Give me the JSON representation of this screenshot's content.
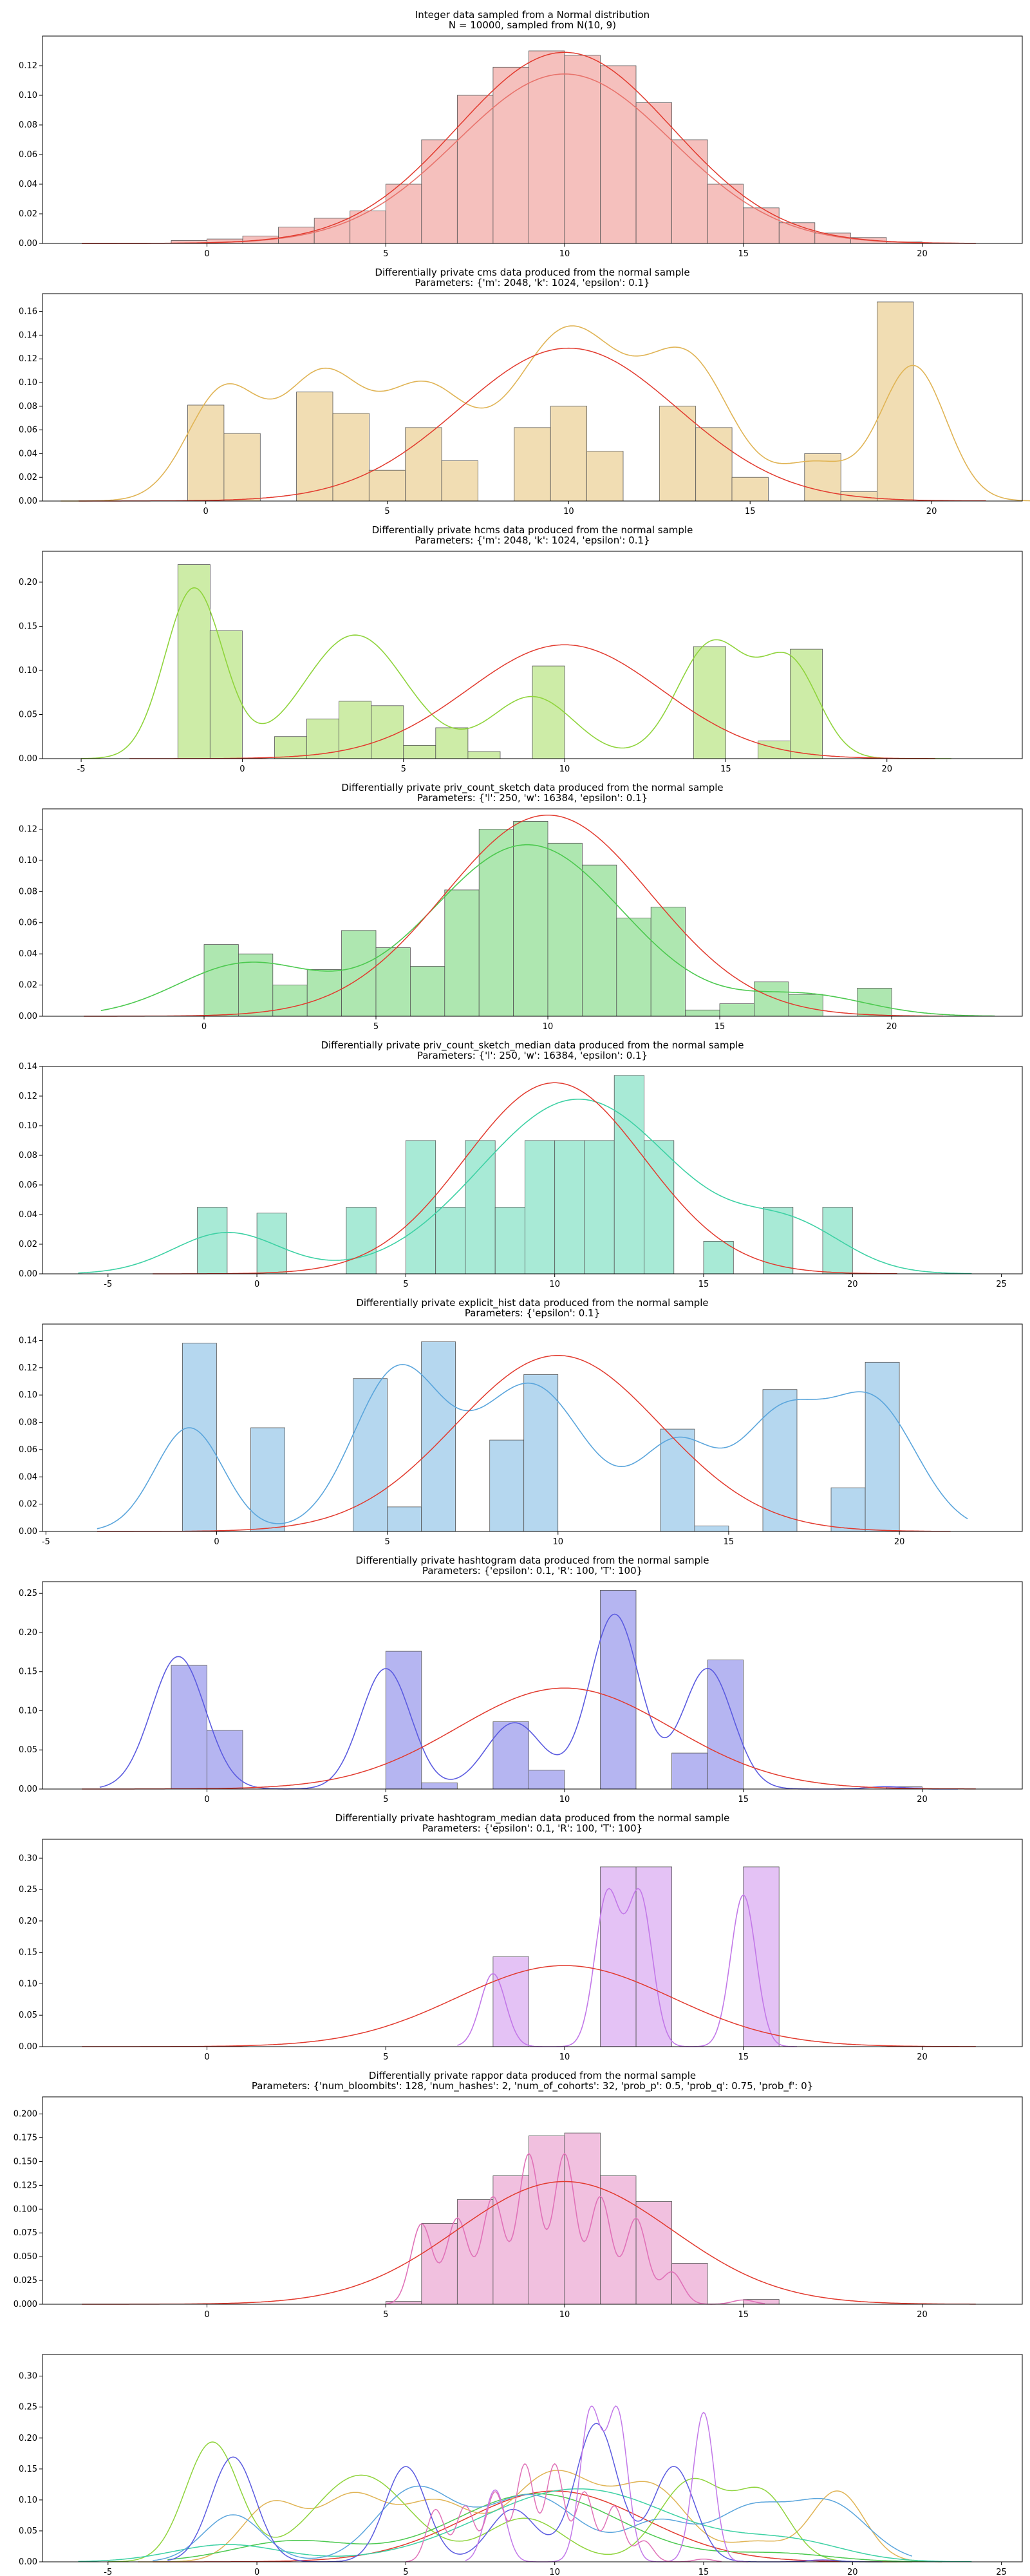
{
  "chart_data": [
    {
      "type": "bar",
      "title": [
        "Integer data sampled from a Normal distribution",
        "N = 10000, sampled from N(10, 9)"
      ],
      "color": "#e8736c",
      "xlim": [
        -4.6,
        22.8
      ],
      "ylim": [
        0,
        0.14
      ],
      "xticks": [
        0,
        5,
        10,
        15,
        20
      ],
      "yticks": [
        0,
        0.02,
        0.04,
        0.06,
        0.08,
        0.1,
        0.12
      ],
      "ytick_labels": [
        "0.00",
        "0.02",
        "0.04",
        "0.06",
        "0.08",
        "0.10",
        "0.12"
      ],
      "bars": [
        [
          -1,
          0.002
        ],
        [
          0,
          0.003
        ],
        [
          1,
          0.005
        ],
        [
          2,
          0.011
        ],
        [
          3,
          0.017
        ],
        [
          4,
          0.022
        ],
        [
          5,
          0.04
        ],
        [
          6,
          0.07
        ],
        [
          7,
          0.1
        ],
        [
          8,
          0.119
        ],
        [
          9,
          0.13
        ],
        [
          10,
          0.127
        ],
        [
          11,
          0.12
        ],
        [
          12,
          0.095
        ],
        [
          13,
          0.07
        ],
        [
          14,
          0.04
        ],
        [
          15,
          0.024
        ],
        [
          16,
          0.014
        ],
        [
          17,
          0.007
        ],
        [
          18,
          0.004
        ],
        [
          19,
          0.001
        ]
      ],
      "kde": {
        "components": [
          [
            1.0,
            10.0,
            3.0
          ]
        ],
        "range": [
          -3.5,
          21.5
        ]
      }
    },
    {
      "type": "bar",
      "title": [
        "Differentially private cms data produced from the normal sample",
        "Parameters: {'m': 2048, 'k': 1024, 'epsilon': 0.1}"
      ],
      "color": "#e0b455",
      "xlim": [
        -4.5,
        22.5
      ],
      "ylim": [
        0,
        0.175
      ],
      "xticks": [
        0,
        5,
        10,
        15,
        20
      ],
      "yticks": [
        0,
        0.02,
        0.04,
        0.06,
        0.08,
        0.1,
        0.12,
        0.14,
        0.16
      ],
      "ytick_labels": [
        "0.00",
        "0.02",
        "0.04",
        "0.06",
        "0.08",
        "0.10",
        "0.12",
        "0.14",
        "0.16"
      ],
      "bars": [
        [
          -0.5,
          0.081
        ],
        [
          0.5,
          0.057
        ],
        [
          2.5,
          0.092
        ],
        [
          3.5,
          0.074
        ],
        [
          4.5,
          0.026
        ],
        [
          5.5,
          0.062
        ],
        [
          6.5,
          0.034
        ],
        [
          8.5,
          0.062
        ],
        [
          9.5,
          0.08
        ],
        [
          10.5,
          0.042
        ],
        [
          12.5,
          0.08
        ],
        [
          13.5,
          0.062
        ],
        [
          14.5,
          0.02
        ],
        [
          16.5,
          0.04
        ],
        [
          17.5,
          0.008
        ],
        [
          18.5,
          0.168
        ]
      ],
      "kde": {
        "components": [
          [
            0.09,
            0.5,
            1.0
          ],
          [
            0.1,
            3.2,
            1.1
          ],
          [
            0.09,
            6.0,
            1.2
          ],
          [
            0.14,
            10.0,
            1.5
          ],
          [
            0.11,
            13.3,
            1.2
          ],
          [
            0.03,
            16.8,
            1.0
          ],
          [
            0.11,
            19.5,
            0.9
          ]
        ],
        "range": [
          -4,
          23
        ]
      }
    },
    {
      "type": "bar",
      "title": [
        "Differentially private hcms data produced from the normal sample",
        "Parameters: {'m': 2048, 'k': 1024, 'epsilon': 0.1}"
      ],
      "color": "#8fd43c",
      "xlim": [
        -6.2,
        24.2
      ],
      "ylim": [
        0,
        0.235
      ],
      "xticks": [
        -5,
        0,
        5,
        10,
        15,
        20
      ],
      "yticks": [
        0,
        0.05,
        0.1,
        0.15,
        0.2
      ],
      "ytick_labels": [
        "0.00",
        "0.05",
        "0.10",
        "0.15",
        "0.20"
      ],
      "bars": [
        [
          -2,
          0.22
        ],
        [
          -1,
          0.145
        ],
        [
          1,
          0.025
        ],
        [
          2,
          0.045
        ],
        [
          3,
          0.065
        ],
        [
          4,
          0.06
        ],
        [
          5,
          0.015
        ],
        [
          6,
          0.035
        ],
        [
          7,
          0.008
        ],
        [
          9,
          0.105
        ],
        [
          14,
          0.127
        ],
        [
          16,
          0.02
        ],
        [
          17,
          0.124
        ]
      ],
      "kde": {
        "components": [
          [
            0.22,
            -1.5,
            0.9
          ],
          [
            0.16,
            3.5,
            1.6
          ],
          [
            0.08,
            9.0,
            1.3
          ],
          [
            0.15,
            14.6,
            1.1
          ],
          [
            0.12,
            17.0,
            0.9
          ]
        ],
        "range": [
          -5,
          22
        ]
      }
    },
    {
      "type": "bar",
      "title": [
        "Differentially private priv_count_sketch data produced from the normal sample",
        "Parameters: {'l': 250, 'w': 16384, 'epsilon': 0.1}"
      ],
      "color": "#4cc94f",
      "xlim": [
        -4.7,
        23.8
      ],
      "ylim": [
        0,
        0.133
      ],
      "xticks": [
        0,
        5,
        10,
        15,
        20
      ],
      "yticks": [
        0,
        0.02,
        0.04,
        0.06,
        0.08,
        0.1,
        0.12
      ],
      "ytick_labels": [
        "0.00",
        "0.02",
        "0.04",
        "0.06",
        "0.08",
        "0.10",
        "0.12"
      ],
      "bars": [
        [
          0,
          0.046
        ],
        [
          1,
          0.04
        ],
        [
          2,
          0.02
        ],
        [
          3,
          0.03
        ],
        [
          4,
          0.055
        ],
        [
          5,
          0.044
        ],
        [
          6,
          0.032
        ],
        [
          7,
          0.081
        ],
        [
          8,
          0.12
        ],
        [
          9,
          0.125
        ],
        [
          10,
          0.111
        ],
        [
          11,
          0.097
        ],
        [
          12,
          0.063
        ],
        [
          13,
          0.07
        ],
        [
          14,
          0.004
        ],
        [
          15,
          0.008
        ],
        [
          16,
          0.022
        ],
        [
          17,
          0.014
        ],
        [
          19,
          0.018
        ]
      ],
      "kde": {
        "components": [
          [
            0.3,
            1.2,
            2.0
          ],
          [
            1.0,
            9.4,
            2.8
          ],
          [
            0.12,
            17.5,
            1.8
          ]
        ],
        "range": [
          -3,
          23
        ]
      }
    },
    {
      "type": "bar",
      "title": [
        "Differentially private priv_count_sketch_median data produced from the normal sample",
        "Parameters: {'l': 250, 'w': 16384, 'epsilon': 0.1}"
      ],
      "color": "#3dd1a4",
      "xlim": [
        -7.2,
        25.7
      ],
      "ylim": [
        0,
        0.14
      ],
      "xticks": [
        -5,
        0,
        5,
        10,
        15,
        20,
        25
      ],
      "yticks": [
        0,
        0.02,
        0.04,
        0.06,
        0.08,
        0.1,
        0.12,
        0.14
      ],
      "ytick_labels": [
        "0.00",
        "0.02",
        "0.04",
        "0.06",
        "0.08",
        "0.10",
        "0.12",
        "0.14"
      ],
      "bars": [
        [
          -2,
          0.045
        ],
        [
          0,
          0.041
        ],
        [
          3,
          0.045
        ],
        [
          5,
          0.09
        ],
        [
          6,
          0.045
        ],
        [
          7,
          0.09
        ],
        [
          8,
          0.045
        ],
        [
          9,
          0.09
        ],
        [
          10,
          0.09
        ],
        [
          11,
          0.09
        ],
        [
          12,
          0.134
        ],
        [
          13,
          0.09
        ],
        [
          15,
          0.022
        ],
        [
          17,
          0.045
        ],
        [
          19,
          0.045
        ]
      ],
      "kde": {
        "components": [
          [
            0.2,
            -1.0,
            1.8
          ],
          [
            0.85,
            10.8,
            3.3
          ],
          [
            0.2,
            18.0,
            1.8
          ]
        ],
        "range": [
          -6,
          24
        ]
      }
    },
    {
      "type": "bar",
      "title": [
        "Differentially private explicit_hist data produced from the normal sample",
        "Parameters: {'epsilon': 0.1}"
      ],
      "color": "#5aa5dc",
      "xlim": [
        -5.1,
        23.6
      ],
      "ylim": [
        0,
        0.152
      ],
      "xticks": [
        -5,
        0,
        5,
        10,
        15,
        20
      ],
      "yticks": [
        0,
        0.02,
        0.04,
        0.06,
        0.08,
        0.1,
        0.12,
        0.14
      ],
      "ytick_labels": [
        "0.00",
        "0.02",
        "0.04",
        "0.06",
        "0.08",
        "0.10",
        "0.12",
        "0.14"
      ],
      "bars": [
        [
          -1,
          0.138
        ],
        [
          1,
          0.076
        ],
        [
          4,
          0.112
        ],
        [
          5,
          0.018
        ],
        [
          6,
          0.139
        ],
        [
          8,
          0.067
        ],
        [
          9,
          0.115
        ],
        [
          13,
          0.075
        ],
        [
          14,
          0.004
        ],
        [
          16,
          0.104
        ],
        [
          18,
          0.032
        ],
        [
          19,
          0.124
        ]
      ],
      "kde": {
        "components": [
          [
            0.17,
            -0.8,
            1.0
          ],
          [
            0.26,
            5.3,
            1.3
          ],
          [
            0.24,
            9.2,
            1.6
          ],
          [
            0.14,
            13.5,
            1.1
          ],
          [
            0.18,
            16.5,
            1.2
          ],
          [
            0.21,
            19.2,
            1.3
          ]
        ],
        "range": [
          -3.5,
          22
        ]
      }
    },
    {
      "type": "bar",
      "title": [
        "Differentially private hashtogram data produced from the normal sample",
        "Parameters: {'epsilon': 0.1, 'R': 100, 'T': 100}"
      ],
      "color": "#5b5be0",
      "xlim": [
        -4.6,
        22.8
      ],
      "ylim": [
        0,
        0.265
      ],
      "xticks": [
        0,
        5,
        10,
        15,
        20
      ],
      "yticks": [
        0,
        0.05,
        0.1,
        0.15,
        0.2,
        0.25
      ],
      "ytick_labels": [
        "0.00",
        "0.05",
        "0.10",
        "0.15",
        "0.20",
        "0.25"
      ],
      "bars": [
        [
          -1,
          0.158
        ],
        [
          0,
          0.075
        ],
        [
          5,
          0.176
        ],
        [
          6,
          0.008
        ],
        [
          8,
          0.086
        ],
        [
          9,
          0.024
        ],
        [
          11,
          0.254
        ],
        [
          13,
          0.046
        ],
        [
          14,
          0.165
        ],
        [
          19,
          0.003
        ]
      ],
      "kde": {
        "components": [
          [
            0.22,
            -0.8,
            0.75
          ],
          [
            0.2,
            5.0,
            0.7
          ],
          [
            0.11,
            8.6,
            0.8
          ],
          [
            0.29,
            11.4,
            0.7
          ],
          [
            0.2,
            14.0,
            0.7
          ],
          [
            0.004,
            19.0,
            0.5
          ]
        ],
        "range": [
          -3,
          21
        ]
      }
    },
    {
      "type": "bar",
      "title": [
        "Differentially private hashtogram_median data produced from the normal sample",
        "Parameters: {'epsilon': 0.1, 'R': 100, 'T': 100}"
      ],
      "color": "#c278e8",
      "xlim": [
        -4.6,
        22.8
      ],
      "ylim": [
        0,
        0.33
      ],
      "xticks": [
        0,
        5,
        10,
        15,
        20
      ],
      "yticks": [
        0,
        0.05,
        0.1,
        0.15,
        0.2,
        0.25,
        0.3
      ],
      "ytick_labels": [
        "0.00",
        "0.05",
        "0.10",
        "0.15",
        "0.20",
        "0.25",
        "0.30"
      ],
      "bars": [
        [
          8,
          0.143
        ],
        [
          11,
          0.286
        ],
        [
          12,
          0.286
        ],
        [
          15,
          0.286
        ]
      ],
      "kde": {
        "components": [
          [
            0.065,
            8.0,
            0.35
          ],
          [
            0.135,
            11.2,
            0.35
          ],
          [
            0.135,
            12.1,
            0.35
          ],
          [
            0.135,
            15.0,
            0.35
          ]
        ],
        "range": [
          7,
          16.5
        ]
      }
    },
    {
      "type": "bar",
      "title": [
        "Differentially private rappor data produced from the normal sample",
        "Parameters: {'num_bloombits': 128, 'num_hashes': 2, 'num_of_cohorts': 32, 'prob_p': 0.5, 'prob_q': 0.75, 'prob_f': 0}"
      ],
      "color": "#e072b8",
      "xlim": [
        -4.6,
        22.8
      ],
      "ylim": [
        0,
        0.218
      ],
      "xticks": [
        0,
        5,
        10,
        15,
        20
      ],
      "yticks": [
        0,
        0.025,
        0.05,
        0.075,
        0.1,
        0.125,
        0.15,
        0.175,
        0.2
      ],
      "ytick_labels": [
        "0.000",
        "0.025",
        "0.050",
        "0.075",
        "0.100",
        "0.125",
        "0.150",
        "0.175",
        "0.200"
      ],
      "bars": [
        [
          5,
          0.003
        ],
        [
          6,
          0.085
        ],
        [
          7,
          0.11
        ],
        [
          8,
          0.135
        ],
        [
          9,
          0.177
        ],
        [
          10,
          0.18
        ],
        [
          11,
          0.135
        ],
        [
          12,
          0.108
        ],
        [
          13,
          0.043
        ],
        [
          15,
          0.005
        ]
      ],
      "kde": {
        "components": [
          [
            0.075,
            6.0,
            0.3
          ],
          [
            0.08,
            7.0,
            0.3
          ],
          [
            0.1,
            8.0,
            0.3
          ],
          [
            0.14,
            9.0,
            0.3
          ],
          [
            0.14,
            10.0,
            0.3
          ],
          [
            0.1,
            11.0,
            0.3
          ],
          [
            0.08,
            12.0,
            0.3
          ],
          [
            0.03,
            13.0,
            0.3
          ],
          [
            0.004,
            15.0,
            0.3
          ]
        ],
        "range": [
          5,
          15.6
        ]
      }
    },
    {
      "type": "line",
      "title": [],
      "xlim": [
        -7.2,
        25.7
      ],
      "ylim": [
        0,
        0.335
      ],
      "xticks": [
        -5,
        0,
        5,
        10,
        15,
        20,
        25
      ],
      "yticks": [
        0,
        0.05,
        0.1,
        0.15,
        0.2,
        0.25,
        0.3
      ],
      "ytick_labels": [
        "0.00",
        "0.05",
        "0.10",
        "0.15",
        "0.20",
        "0.25",
        "0.30"
      ],
      "overlay_of": [
        0,
        1,
        2,
        3,
        4,
        5,
        6,
        7,
        8
      ]
    }
  ]
}
